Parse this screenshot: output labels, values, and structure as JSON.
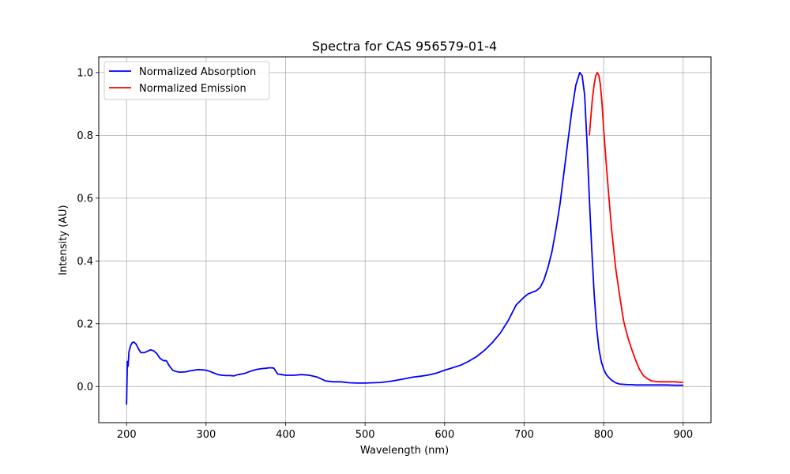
{
  "chart_data": {
    "type": "line",
    "title": "Spectra for CAS 956579-01-4",
    "xlabel": "Wavelength (nm)",
    "ylabel": "Intensity (AU)",
    "xlim": [
      165,
      935
    ],
    "ylim": [
      -0.115,
      1.05
    ],
    "xticks": [
      200,
      300,
      400,
      500,
      600,
      700,
      800,
      900
    ],
    "xtick_labels": [
      "200",
      "300",
      "400",
      "500",
      "600",
      "700",
      "800",
      "900"
    ],
    "yticks": [
      0.0,
      0.2,
      0.4,
      0.6,
      0.8,
      1.0
    ],
    "ytick_labels": [
      "0.0",
      "0.2",
      "0.4",
      "0.6",
      "0.8",
      "1.0"
    ],
    "grid": true,
    "legend_position": "upper-left",
    "series": [
      {
        "name": "Normalized Absorption",
        "color": "#0000ff",
        "x": [
          200,
          201,
          202,
          203,
          205,
          207,
          209,
          212,
          215,
          218,
          222,
          226,
          230,
          234,
          238,
          242,
          246,
          250,
          254,
          258,
          262,
          266,
          270,
          275,
          280,
          285,
          290,
          295,
          300,
          305,
          310,
          315,
          320,
          325,
          330,
          335,
          340,
          345,
          350,
          355,
          360,
          365,
          370,
          375,
          380,
          385,
          390,
          395,
          400,
          410,
          420,
          430,
          440,
          450,
          460,
          470,
          480,
          490,
          500,
          510,
          520,
          530,
          540,
          550,
          560,
          570,
          580,
          590,
          600,
          610,
          620,
          630,
          640,
          650,
          660,
          670,
          680,
          690,
          700,
          705,
          710,
          715,
          720,
          725,
          730,
          735,
          740,
          745,
          750,
          755,
          760,
          765,
          770,
          773,
          776,
          779,
          782,
          785,
          788,
          791,
          794,
          797,
          800,
          803,
          806,
          810,
          815,
          820,
          825,
          830,
          835,
          840,
          850,
          860,
          870,
          880,
          890,
          900
        ],
        "values": [
          -0.058,
          0.08,
          0.065,
          0.11,
          0.13,
          0.14,
          0.142,
          0.135,
          0.12,
          0.108,
          0.108,
          0.112,
          0.117,
          0.114,
          0.105,
          0.09,
          0.083,
          0.082,
          0.065,
          0.052,
          0.048,
          0.046,
          0.046,
          0.047,
          0.05,
          0.052,
          0.054,
          0.053,
          0.052,
          0.048,
          0.043,
          0.038,
          0.036,
          0.035,
          0.035,
          0.034,
          0.038,
          0.04,
          0.043,
          0.048,
          0.052,
          0.055,
          0.057,
          0.058,
          0.06,
          0.059,
          0.04,
          0.038,
          0.036,
          0.036,
          0.038,
          0.036,
          0.03,
          0.018,
          0.015,
          0.015,
          0.012,
          0.011,
          0.011,
          0.012,
          0.013,
          0.016,
          0.02,
          0.025,
          0.03,
          0.033,
          0.037,
          0.043,
          0.052,
          0.06,
          0.068,
          0.08,
          0.095,
          0.115,
          0.14,
          0.17,
          0.21,
          0.26,
          0.285,
          0.295,
          0.3,
          0.305,
          0.315,
          0.34,
          0.38,
          0.43,
          0.5,
          0.58,
          0.68,
          0.78,
          0.88,
          0.96,
          1.0,
          0.99,
          0.93,
          0.78,
          0.6,
          0.44,
          0.3,
          0.19,
          0.12,
          0.08,
          0.055,
          0.04,
          0.03,
          0.02,
          0.012,
          0.008,
          0.007,
          0.006,
          0.006,
          0.005,
          0.005,
          0.005,
          0.005,
          0.005,
          0.004,
          0.004
        ]
      },
      {
        "name": "Normalized Emission",
        "color": "#ff0000",
        "x": [
          782,
          784,
          786,
          788,
          790,
          792,
          794,
          796,
          798,
          800,
          803,
          806,
          810,
          815,
          820,
          825,
          830,
          835,
          840,
          845,
          850,
          855,
          860,
          865,
          870,
          880,
          890,
          900
        ],
        "values": [
          0.8,
          0.86,
          0.92,
          0.96,
          0.99,
          1.0,
          0.99,
          0.96,
          0.9,
          0.82,
          0.72,
          0.62,
          0.5,
          0.38,
          0.29,
          0.21,
          0.16,
          0.12,
          0.085,
          0.055,
          0.035,
          0.025,
          0.018,
          0.016,
          0.015,
          0.015,
          0.015,
          0.013
        ]
      }
    ]
  }
}
